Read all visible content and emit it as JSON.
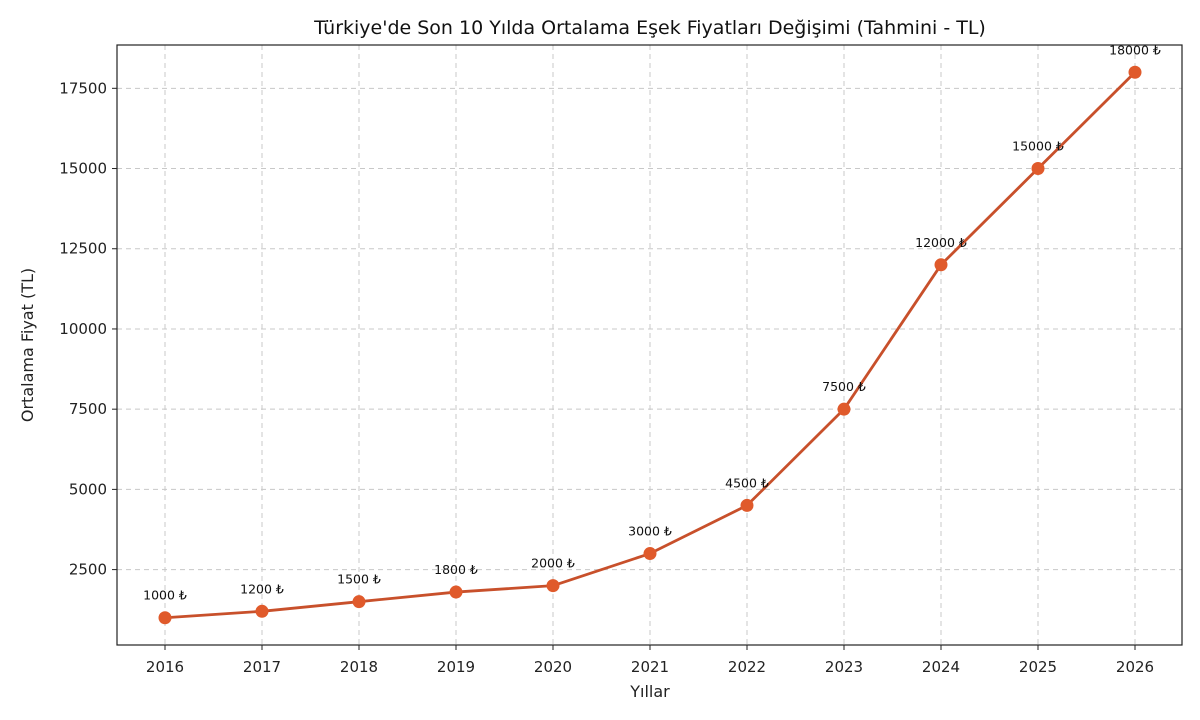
{
  "chart_data": {
    "type": "line",
    "title": "Türkiye'de Son 10 Yılda Ortalama Eşek Fiyatları Değişimi (Tahmini - TL)",
    "xlabel": "Yıllar",
    "ylabel": "Ortalama Fiyat (TL)",
    "x": [
      "2016",
      "2017",
      "2018",
      "2019",
      "2020",
      "2021",
      "2022",
      "2023",
      "2024",
      "2025",
      "2026"
    ],
    "series": [
      {
        "values": [
          1000,
          1200,
          1500,
          1800,
          2000,
          3000,
          4500,
          7500,
          12000,
          15000,
          18000
        ],
        "data_labels": [
          "1000 ₺",
          "1200 ₺",
          "1500 ₺",
          "1800 ₺",
          "2000 ₺",
          "3000 ₺",
          "4500 ₺",
          "7500 ₺",
          "12000 ₺",
          "15000 ₺",
          "18000 ₺"
        ],
        "color": "#c8502b",
        "marker_color": "#e05a2b"
      }
    ],
    "yticks": [
      2500,
      5000,
      7500,
      10000,
      12500,
      15000,
      17500
    ],
    "ylim": [
      150,
      18850
    ],
    "grid": true,
    "legend": "none"
  }
}
